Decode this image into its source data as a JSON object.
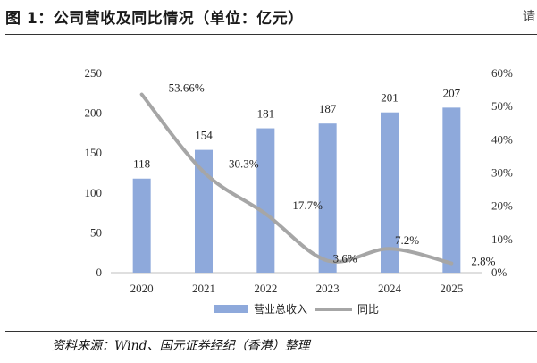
{
  "header": {
    "title": "图 1：公司营收及同比情况（单位：亿元）",
    "edge_glyph": "请"
  },
  "source": "资料来源：Wind、国元证券经纪（香港）整理",
  "colors": {
    "bar": "#8EA9DB",
    "line": "#A6A6A6",
    "axis": "#bfbfbf"
  },
  "chart_data": {
    "type": "bar",
    "categories": [
      "2020",
      "2021",
      "2022",
      "2023",
      "2024",
      "2025"
    ],
    "series": [
      {
        "name": "营业总收入",
        "type": "bar",
        "axis": "left",
        "values": [
          118,
          154,
          181,
          187,
          201,
          207
        ],
        "labels": [
          "118",
          "154",
          "181",
          "187",
          "201",
          "207"
        ]
      },
      {
        "name": "同比",
        "type": "line",
        "axis": "right",
        "smooth": true,
        "values": [
          53.66,
          30.3,
          17.7,
          3.6,
          7.2,
          2.8
        ],
        "labels": [
          "53.66%",
          "30.3%",
          "17.7%",
          "3.6%",
          "7.2%",
          "2.8%"
        ]
      }
    ],
    "ylim_left": [
      0,
      250
    ],
    "yticks_left": [
      "0",
      "50",
      "100",
      "150",
      "200",
      "250"
    ],
    "ylim_right": [
      0,
      60
    ],
    "yticks_right": [
      "0%",
      "10%",
      "20%",
      "30%",
      "40%",
      "50%",
      "60%"
    ],
    "grid": false,
    "legend": "bottom"
  }
}
